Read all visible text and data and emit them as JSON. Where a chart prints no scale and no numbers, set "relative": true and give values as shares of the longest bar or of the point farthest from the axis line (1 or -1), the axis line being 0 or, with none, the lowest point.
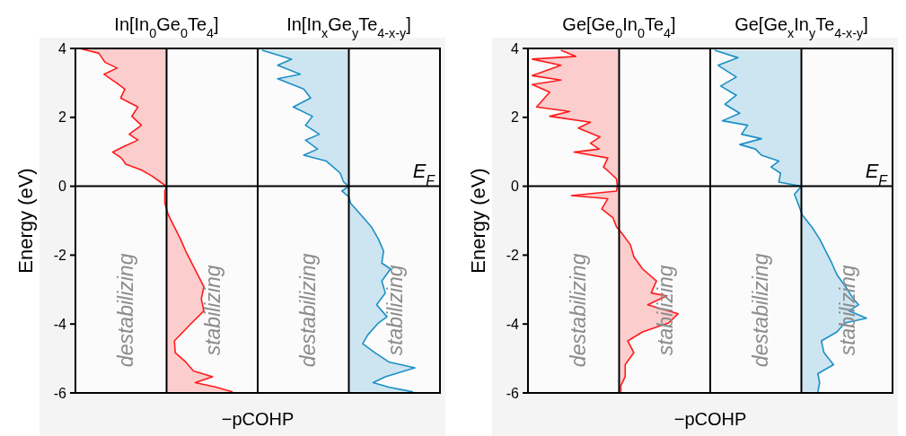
{
  "chart_data": [
    {
      "type": "area",
      "orientation": "horizontal",
      "relative": true,
      "title": "In[In$_{0}$Ge$_{0}$Te$_{4}$]",
      "ylabel": "Energy (eV)",
      "xlabel": "−pCOHP",
      "ylim": [
        -6,
        4
      ],
      "yticks": [
        -6,
        -4,
        -2,
        0,
        2,
        4
      ],
      "tick_labels": "y",
      "x": [
        4.0,
        3.86,
        3.6,
        3.43,
        3.25,
        2.99,
        2.82,
        2.56,
        2.3,
        2.03,
        1.77,
        1.51,
        1.34,
        1.17,
        0.99,
        0.82,
        0.64,
        0.47,
        0.3,
        0.12,
        0,
        -0.14,
        -0.49,
        -0.83,
        -1.18,
        -1.53,
        -1.88,
        -2.23,
        -2.57,
        -2.92,
        -3.27,
        -3.62,
        -3.97,
        -4.23,
        -4.49,
        -4.83,
        -5.1,
        -5.36,
        -5.53,
        -5.7,
        -5.83,
        -5.97
      ],
      "series": [
        {
          "color": "#ff1a1a",
          "values": [
            -1.0,
            -0.78,
            -0.71,
            -0.57,
            -0.72,
            -0.57,
            -0.48,
            -0.53,
            -0.33,
            -0.4,
            -0.29,
            -0.43,
            -0.33,
            -0.48,
            -0.62,
            -0.52,
            -0.47,
            -0.29,
            -0.17,
            -0.07,
            0,
            -0.02,
            -0.02,
            0.02,
            0.09,
            0.16,
            0.22,
            0.29,
            0.36,
            0.43,
            0.4,
            0.43,
            0.29,
            0.19,
            0.09,
            0.1,
            0.22,
            0.31,
            0.53,
            0.33,
            0.57,
            0.76
          ]
        }
      ],
      "ref_lines": [
        {
          "axis": "y",
          "value": 0
        },
        {
          "axis": "x",
          "value": 0
        }
      ],
      "annotations": [
        "destabilizing",
        "stabilizing"
      ]
    },
    {
      "type": "area",
      "orientation": "horizontal",
      "relative": true,
      "title": "In[In$_{x}$Ge$_{y}$Te$_{4-x-y}$]",
      "ylim": [
        -6,
        4
      ],
      "tick_labels": false,
      "x": [
        3.95,
        3.69,
        3.51,
        3.25,
        3.12,
        2.82,
        2.56,
        2.3,
        2.03,
        1.77,
        1.51,
        1.34,
        1.08,
        0.9,
        0.73,
        0.56,
        0.38,
        0.12,
        0,
        -0.14,
        -0.31,
        -0.49,
        -0.83,
        -1.18,
        -1.53,
        -1.88,
        -2.23,
        -2.4,
        -2.75,
        -3.1,
        -3.44,
        -3.79,
        -3.97,
        -4.31,
        -4.57,
        -4.83,
        -5.1,
        -5.27,
        -5.53,
        -5.7,
        -5.83,
        -5.97
      ],
      "series": [
        {
          "color": "#1b8fc6",
          "values": [
            -1.0,
            -0.66,
            -0.82,
            -0.56,
            -0.82,
            -0.52,
            -0.44,
            -0.64,
            -0.42,
            -0.5,
            -0.34,
            -0.5,
            -0.36,
            -0.52,
            -0.26,
            -0.18,
            -0.1,
            -0.06,
            0,
            -0.08,
            0,
            0.02,
            0.14,
            0.26,
            0.34,
            0.4,
            0.38,
            0.48,
            0.38,
            0.42,
            0.32,
            0.44,
            0.34,
            0.22,
            0.16,
            0.3,
            0.46,
            0.76,
            0.42,
            0.28,
            0.46,
            0.74
          ]
        }
      ],
      "ref_lines": [
        {
          "axis": "y",
          "value": 0,
          "label": "E$_{F}$"
        },
        {
          "axis": "x",
          "value": 0
        }
      ],
      "annotations": [
        "destabilizing",
        "stabilizing"
      ]
    },
    {
      "type": "area",
      "orientation": "horizontal",
      "relative": true,
      "title": "Ge[Ge$_{0}$In$_{0}$Te$_{4}$]",
      "ylabel": "Energy (eV)",
      "xlabel": "−pCOHP",
      "ylim": [
        -6,
        4
      ],
      "yticks": [
        -6,
        -4,
        -2,
        0,
        2,
        4
      ],
      "tick_labels": "y",
      "x": [
        3.95,
        3.77,
        3.69,
        3.51,
        3.21,
        3.08,
        2.95,
        2.73,
        2.3,
        2.17,
        2.03,
        1.86,
        1.69,
        1.43,
        1.25,
        1.08,
        0.99,
        0.82,
        0.56,
        0.38,
        0.21,
        0,
        -0.14,
        -0.27,
        -0.36,
        -0.66,
        -0.92,
        -1.18,
        -1.36,
        -1.7,
        -2.05,
        -2.4,
        -2.75,
        -3.1,
        -3.18,
        -3.44,
        -3.7,
        -3.97,
        -4.23,
        -4.49,
        -4.83,
        -5.18,
        -5.53,
        -5.79,
        -5.97
      ],
      "series": [
        {
          "color": "#ff1a1a",
          "values": [
            -0.67,
            -0.5,
            -1.0,
            -0.67,
            -1.0,
            -0.67,
            -1.0,
            -0.8,
            -0.95,
            -0.57,
            -0.8,
            -0.33,
            -0.47,
            -0.22,
            -0.33,
            -0.23,
            -0.52,
            -0.13,
            -0.18,
            -0.1,
            -0.03,
            -0.02,
            -0.03,
            -0.55,
            -0.13,
            -0.2,
            -0.07,
            -0.03,
            0.03,
            0.13,
            0.17,
            0.27,
            0.43,
            0.37,
            0.55,
            0.33,
            0.68,
            0.57,
            0.27,
            0.1,
            0.17,
            0.07,
            0.07,
            0.02,
            0.02
          ]
        }
      ],
      "ref_lines": [
        {
          "axis": "y",
          "value": 0
        },
        {
          "axis": "x",
          "value": 0
        }
      ],
      "annotations": [
        "destabilizing",
        "stabilizing"
      ]
    },
    {
      "type": "area",
      "orientation": "horizontal",
      "relative": true,
      "title": "Ge[Ge$_{x}$In$_{y}$Te$_{4-x-y}$]",
      "ylim": [
        -6,
        4
      ],
      "tick_labels": false,
      "x": [
        3.95,
        3.73,
        3.51,
        3.17,
        2.91,
        2.64,
        2.38,
        2.12,
        1.9,
        1.77,
        1.51,
        1.38,
        1.21,
        1.08,
        0.9,
        0.73,
        0.56,
        0.38,
        0.12,
        0,
        -0.23,
        -0.49,
        -0.83,
        -1.18,
        -1.53,
        -1.88,
        -2.23,
        -2.57,
        -2.92,
        -3.27,
        -3.44,
        -3.62,
        -3.83,
        -3.97,
        -4.23,
        -4.49,
        -4.83,
        -5.18,
        -5.44,
        -5.7,
        -5.97
      ],
      "series": [
        {
          "color": "#1b8fc6",
          "values": [
            -1.0,
            -0.73,
            -0.96,
            -0.75,
            -0.93,
            -0.75,
            -0.88,
            -0.71,
            -0.91,
            -0.62,
            -0.69,
            -0.46,
            -0.71,
            -0.53,
            -0.46,
            -0.26,
            -0.35,
            -0.24,
            -0.26,
            0,
            -0.08,
            -0.04,
            0.01,
            0.12,
            0.21,
            0.28,
            0.35,
            0.41,
            0.51,
            0.6,
            0.66,
            0.55,
            0.75,
            0.5,
            0.41,
            0.23,
            0.26,
            0.37,
            0.19,
            0.21,
            0.19
          ]
        }
      ],
      "ref_lines": [
        {
          "axis": "y",
          "value": 0,
          "label": "E$_{F}$"
        },
        {
          "axis": "x",
          "value": 0
        }
      ],
      "annotations": [
        "destabilizing",
        "stabilizing"
      ]
    }
  ]
}
